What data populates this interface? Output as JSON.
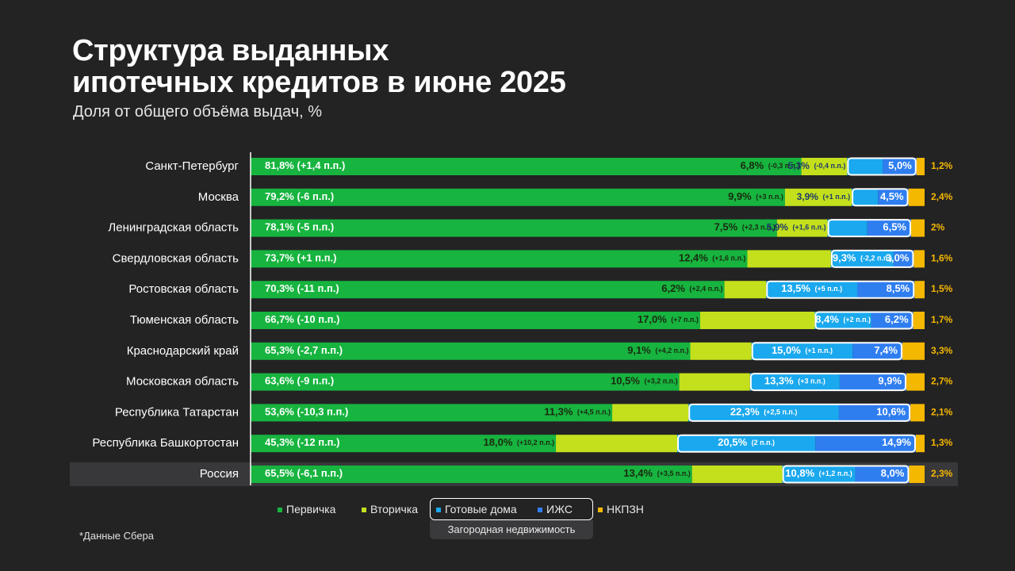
{
  "title_line1": "Структура выданных",
  "title_line2": "ипотечных кредитов в июне 2025",
  "subtitle": "Доля от общего объёма выдач, %",
  "footnote": "*Данные Сбера",
  "colors": {
    "primary": "#17b43f",
    "secondary": "#c4e01c",
    "ready_houses": "#1aa8ee",
    "izhs": "#2f7ef0",
    "nkpzn": "#f5b800",
    "background": "#232324"
  },
  "legend": {
    "items": [
      {
        "label": "Первичка",
        "color": "#17b43f"
      },
      {
        "label": "Вторичка",
        "color": "#c4e01c"
      },
      {
        "label": "Готовые дома",
        "color": "#1aa8ee"
      },
      {
        "label": "ИЖС",
        "color": "#2f7ef0"
      },
      {
        "label": "НКПЗН",
        "color": "#f5b800"
      }
    ],
    "group_label": "Загородная недвижимость"
  },
  "chart_data": {
    "type": "bar",
    "orientation": "horizontal",
    "stacked": true,
    "xlim": [
      0,
      100
    ],
    "series_names": [
      "Первичка",
      "Вторичка",
      "Готовые дома",
      "ИЖС",
      "НКПЗН"
    ],
    "rows": [
      {
        "region": "Санкт-Петербург",
        "values": [
          81.8,
          6.8,
          5.3,
          5.0,
          1.2
        ],
        "labels": [
          "81,8%",
          "6,8%",
          "5,3%",
          "5,0%",
          "1,2%"
        ],
        "changes": [
          "(+1,4 п.п.)",
          "(-0,3 п.п.)",
          "(-0,4 п.п.)",
          "",
          ""
        ]
      },
      {
        "region": "Москва",
        "values": [
          79.2,
          9.9,
          3.9,
          4.5,
          2.4
        ],
        "labels": [
          "79,2%",
          "9,9%",
          "3,9%",
          "4,5%",
          "2,4%"
        ],
        "changes": [
          "(-6 п.п.)",
          "(+3 п.п.)",
          "(+1 п.п.)",
          "",
          ""
        ]
      },
      {
        "region": "Ленинградская область",
        "values": [
          78.1,
          7.5,
          5.9,
          6.5,
          2
        ],
        "labels": [
          "78,1%",
          "7,5%",
          "5,9%",
          "6,5%",
          "2%"
        ],
        "changes": [
          "(-5 п.п.)",
          "(+2,3 п.п.)",
          "(+1,6 п.п.)",
          "",
          ""
        ]
      },
      {
        "region": "Свердловская область",
        "values": [
          73.7,
          12.4,
          9.3,
          3.0,
          1.6
        ],
        "labels": [
          "73,7%",
          "12,4%",
          "9,3%",
          "3,0%",
          "1,6%"
        ],
        "changes": [
          "(+1 п.п.)",
          "(+1,6 п.п.)",
          "(-2,2 п.п.)",
          "",
          ""
        ]
      },
      {
        "region": "Ростовская область",
        "values": [
          70.3,
          6.2,
          13.5,
          8.5,
          1.5
        ],
        "labels": [
          "70,3%",
          "6,2%",
          "13,5%",
          "8,5%",
          "1,5%"
        ],
        "changes": [
          "(-11 п.п.)",
          "(+2,4 п.п.)",
          "(+5 п.п.)",
          "",
          ""
        ]
      },
      {
        "region": "Тюменская область",
        "values": [
          66.7,
          17.0,
          8.4,
          6.2,
          1.7
        ],
        "labels": [
          "66,7%",
          "17,0%",
          "8,4%",
          "6,2%",
          "1,7%"
        ],
        "changes": [
          "(-10 п.п.)",
          "(+7 п.п.)",
          "(+2 п.п.)",
          "",
          ""
        ]
      },
      {
        "region": "Краснодарский край",
        "values": [
          65.3,
          9.1,
          15.0,
          7.4,
          3.3
        ],
        "labels": [
          "65,3%",
          "9,1%",
          "15,0%",
          "7,4%",
          "3,3%"
        ],
        "changes": [
          "(-2,7 п.п.)",
          "(+4,2 п.п.)",
          "(+1 п.п.)",
          "",
          ""
        ]
      },
      {
        "region": "Московская область",
        "values": [
          63.6,
          10.5,
          13.3,
          9.9,
          2.7
        ],
        "labels": [
          "63,6%",
          "10,5%",
          "13,3%",
          "9,9%",
          "2,7%"
        ],
        "changes": [
          "(-9 п.п.)",
          "(+3,2 п.п.)",
          "(+3 п.п.)",
          "",
          ""
        ]
      },
      {
        "region": "Республика Татарстан",
        "values": [
          53.6,
          11.3,
          22.3,
          10.6,
          2.1
        ],
        "labels": [
          "53,6%",
          "11,3%",
          "22,3%",
          "10,6%",
          "2,1%"
        ],
        "changes": [
          "(-10,3 п.п.)",
          "(+4,5 п.п.)",
          "(+2,5 п.п.)",
          "",
          ""
        ]
      },
      {
        "region": "Республика Башкортостан",
        "values": [
          45.3,
          18.0,
          20.5,
          14.9,
          1.3
        ],
        "labels": [
          "45,3%",
          "18,0%",
          "20,5%",
          "14,9%",
          "1,3%"
        ],
        "changes": [
          "(-12 п.п.)",
          "(+10,2 п.п.)",
          "(2 п.п.)",
          "",
          ""
        ]
      },
      {
        "region": "Россия",
        "values": [
          65.5,
          13.4,
          10.8,
          8.0,
          2.3
        ],
        "labels": [
          "65,5%",
          "13,4%",
          "10,8%",
          "8,0%",
          "2,3%"
        ],
        "changes": [
          "(-6,1 п.п.)",
          "(+3,5 п.п.)",
          "(+1,2 п.п.)",
          "",
          ""
        ],
        "highlight": true
      }
    ]
  }
}
